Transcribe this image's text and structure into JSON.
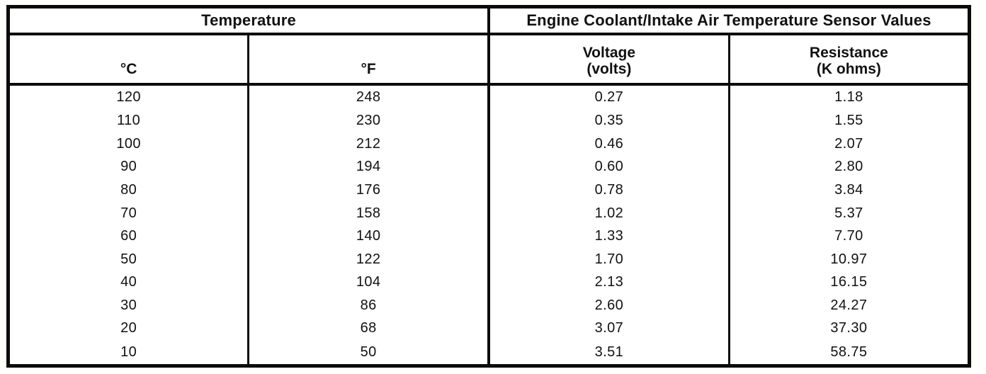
{
  "table": {
    "header_groups": [
      {
        "label": "Temperature"
      },
      {
        "label": "Engine Coolant/Intake Air Temperature Sensor Values"
      }
    ],
    "columns": [
      {
        "label": "°C",
        "sublabel": ""
      },
      {
        "label": "°F",
        "sublabel": ""
      },
      {
        "label": "Voltage",
        "sublabel": "(volts)"
      },
      {
        "label": "Resistance",
        "sublabel": "(K ohms)"
      }
    ],
    "rows": [
      [
        "120",
        "248",
        "0.27",
        "1.18"
      ],
      [
        "110",
        "230",
        "0.35",
        "1.55"
      ],
      [
        "100",
        "212",
        "0.46",
        "2.07"
      ],
      [
        "90",
        "194",
        "0.60",
        "2.80"
      ],
      [
        "80",
        "176",
        "0.78",
        "3.84"
      ],
      [
        "70",
        "158",
        "1.02",
        "5.37"
      ],
      [
        "60",
        "140",
        "1.33",
        "7.70"
      ],
      [
        "50",
        "122",
        "1.70",
        "10.97"
      ],
      [
        "40",
        "104",
        "2.13",
        "16.15"
      ],
      [
        "30",
        "86",
        "2.60",
        "24.27"
      ],
      [
        "20",
        "68",
        "3.07",
        "37.30"
      ],
      [
        "10",
        "50",
        "3.51",
        "58.75"
      ]
    ],
    "colors": {
      "border": "#0b0b0b",
      "text": "#111111",
      "background": "#ffffff"
    }
  }
}
